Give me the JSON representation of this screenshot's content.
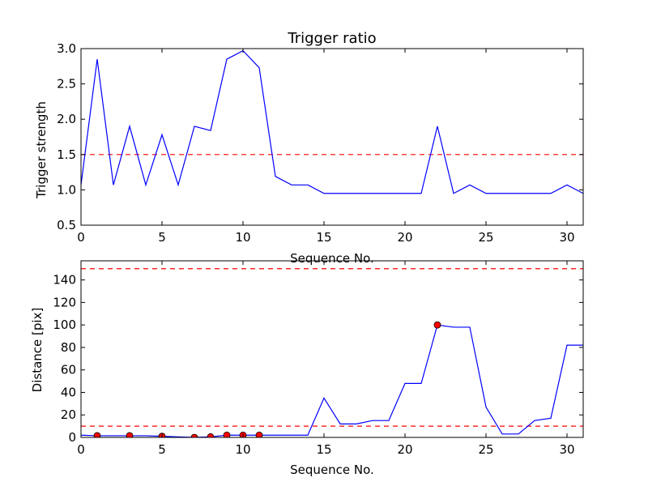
{
  "chart_data": [
    {
      "type": "line",
      "title": "Trigger ratio",
      "xlabel": "Sequence No.",
      "ylabel": "Trigger strength",
      "xlim": [
        0,
        31
      ],
      "ylim": [
        0.5,
        3.0
      ],
      "xticks": [
        0,
        5,
        10,
        15,
        20,
        25,
        30
      ],
      "yticks": [
        "0.5",
        "1.0",
        "1.5",
        "2.0",
        "2.5",
        "3.0"
      ],
      "grid": false,
      "series": [
        {
          "color": "#0000ff",
          "style": "solid",
          "x": [
            0,
            1,
            2,
            3,
            4,
            5,
            6,
            7,
            8,
            9,
            10,
            11,
            12,
            13,
            14,
            15,
            16,
            17,
            18,
            19,
            20,
            21,
            22,
            23,
            24,
            25,
            26,
            27,
            28,
            29,
            30,
            31
          ],
          "values": [
            1.07,
            2.85,
            1.07,
            1.9,
            1.07,
            1.78,
            1.07,
            1.9,
            1.84,
            2.85,
            2.97,
            2.73,
            1.19,
            1.07,
            1.07,
            0.95,
            0.95,
            0.95,
            0.95,
            0.95,
            0.95,
            0.95,
            1.9,
            0.95,
            1.07,
            0.95,
            0.95,
            0.95,
            0.95,
            0.95,
            1.07,
            0.95
          ]
        }
      ],
      "hlines": [
        {
          "y": 1.5,
          "color": "#ff0000",
          "style": "dashed"
        }
      ]
    },
    {
      "type": "line",
      "title": "",
      "xlabel": "Sequence No.",
      "ylabel": "Distance [pix]",
      "xlim": [
        0,
        31
      ],
      "ylim": [
        0,
        157
      ],
      "xticks": [
        0,
        5,
        10,
        15,
        20,
        25,
        30
      ],
      "yticks": [
        "0",
        "20",
        "40",
        "60",
        "80",
        "100",
        "120",
        "140"
      ],
      "grid": false,
      "series": [
        {
          "color": "#0000ff",
          "style": "solid",
          "x": [
            0,
            1,
            2,
            3,
            4,
            5,
            6,
            7,
            8,
            9,
            10,
            11,
            12,
            13,
            14,
            15,
            16,
            17,
            18,
            19,
            20,
            21,
            22,
            23,
            24,
            25,
            26,
            27,
            28,
            29,
            30,
            31
          ],
          "values": [
            2,
            1.5,
            1.5,
            1.5,
            1.5,
            1,
            0.5,
            0,
            0.5,
            2,
            2,
            2,
            2,
            2,
            2,
            35,
            12,
            12,
            15,
            15,
            48,
            48,
            100,
            98,
            98,
            27,
            3,
            3,
            15,
            17,
            82,
            82
          ]
        }
      ],
      "markers": {
        "color": "#ff0000",
        "points": [
          {
            "x": 1,
            "y": 1.5
          },
          {
            "x": 3,
            "y": 1.5
          },
          {
            "x": 5,
            "y": 1
          },
          {
            "x": 7,
            "y": 0
          },
          {
            "x": 8,
            "y": 0.5
          },
          {
            "x": 9,
            "y": 2
          },
          {
            "x": 10,
            "y": 2
          },
          {
            "x": 11,
            "y": 2
          },
          {
            "x": 22,
            "y": 100
          }
        ]
      },
      "hlines": [
        {
          "y": 150,
          "color": "#ff0000",
          "style": "dashed"
        },
        {
          "y": 10,
          "color": "#ff0000",
          "style": "dashed"
        }
      ]
    }
  ]
}
